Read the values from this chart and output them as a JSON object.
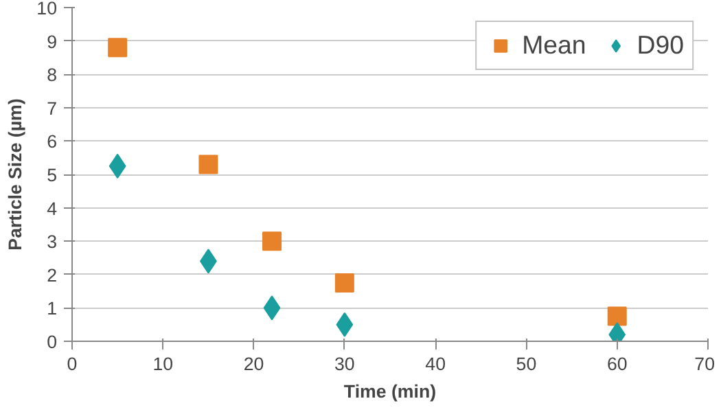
{
  "chart_data": {
    "type": "scatter",
    "xlabel": "Time (min)",
    "ylabel": "Particle Size (µm)",
    "xlim": [
      0,
      70
    ],
    "xticks": [
      0,
      10,
      20,
      30,
      40,
      50,
      60,
      70
    ],
    "ylim": [
      0,
      10
    ],
    "yticks": [
      0,
      1,
      2,
      3,
      4,
      5,
      6,
      7,
      8,
      9,
      10
    ],
    "grid": "y",
    "legend": "top right",
    "x": [
      5,
      15,
      22,
      30,
      60
    ],
    "series": [
      {
        "name": "Mean",
        "color": "#e8822a",
        "marker": "square",
        "values": [
          8.8,
          5.3,
          3.0,
          1.75,
          0.75
        ]
      },
      {
        "name": "D90",
        "color": "#1a9e9e",
        "marker": "diamond",
        "values": [
          5.25,
          2.4,
          1.0,
          0.5,
          0.2
        ]
      }
    ]
  }
}
